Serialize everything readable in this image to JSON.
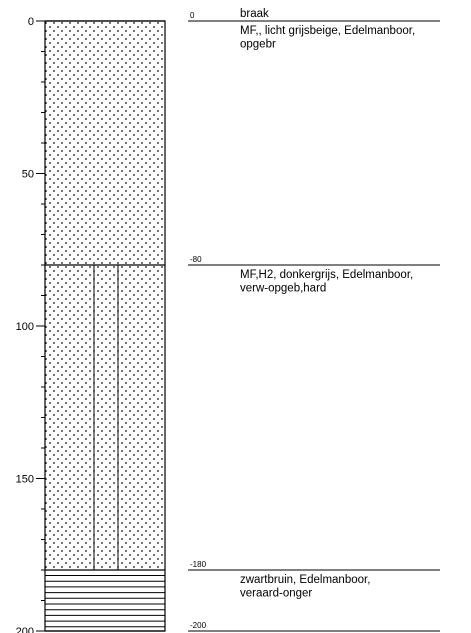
{
  "depth_axis": {
    "ticks": [
      0,
      50,
      100,
      150,
      200
    ],
    "max": 200,
    "minor_step": 10
  },
  "layers": [
    {
      "top": 0,
      "bottom": 80,
      "pattern": "dots",
      "top_label": "0",
      "description_lines": [
        "braak"
      ]
    },
    {
      "top": 0,
      "bottom": 80,
      "pattern": "dots",
      "top_label": "",
      "description_lines": [
        "MF,, licht grijsbeige, Edelmanboor,",
        "opgebr"
      ]
    },
    {
      "top": 80,
      "bottom": 180,
      "pattern": "dots-roots",
      "top_label": "-80",
      "description_lines": [
        "MF,H2, donkergrijs, Edelmanboor,",
        "verw-opgeb,hard"
      ]
    },
    {
      "top": 180,
      "bottom": 200,
      "pattern": "hlines",
      "top_label": "-180",
      "description_lines": [
        "zwartbruin, Edelmanboor,",
        "veraard-onger"
      ]
    }
  ],
  "boundaries": [
    {
      "depth": 0,
      "label": "0"
    },
    {
      "depth": 80,
      "label": "-80"
    },
    {
      "depth": 180,
      "label": "-180"
    },
    {
      "depth": 200,
      "label": "-200"
    }
  ]
}
